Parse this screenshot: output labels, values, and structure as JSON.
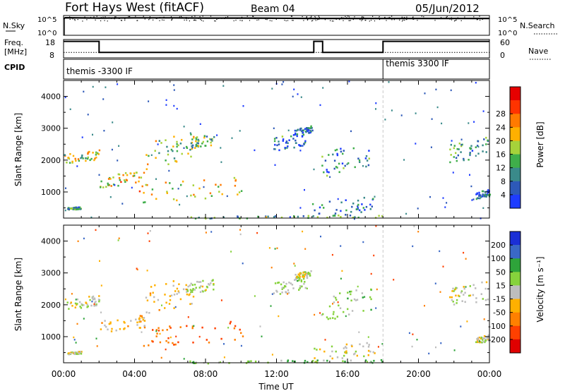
{
  "header": {
    "title": "Fort Hays West (fitACF)",
    "beam": "Beam 04",
    "date": "05/Jun/2012"
  },
  "noise_panel": {
    "left_label": "N.Sky",
    "right_label": "N.Search",
    "ticks_left": [
      "10^5",
      "10^0"
    ],
    "ticks_right": [
      "10^5",
      "10^0"
    ]
  },
  "freq_panel": {
    "left_label_line1": "Freq.",
    "left_label_line2": "[MHz]",
    "left_ticks": [
      "18",
      "8"
    ],
    "right_ticks": [
      "60",
      "0"
    ],
    "right_label": "Nave"
  },
  "cpid_panel": {
    "label": "CPID",
    "segments": [
      {
        "label": "themis -3300 IF",
        "start": 0,
        "end": 18
      },
      {
        "label": "themis 3300 IF",
        "start": 18,
        "end": 24
      }
    ]
  },
  "x_axis": {
    "label": "Time UT",
    "ticks": [
      "00:00",
      "04:00",
      "08:00",
      "12:00",
      "16:00",
      "20:00",
      "00:00"
    ]
  },
  "power_panel": {
    "ylabel": "Slant Range [km]",
    "yticks": [
      "1000",
      "2000",
      "3000",
      "4000"
    ],
    "colorbar_label": "Power [dB]",
    "colorbar_ticks": [
      "4",
      "8",
      "12",
      "16",
      "20",
      "24",
      "28"
    ]
  },
  "velocity_panel": {
    "ylabel": "Slant Range [km]",
    "yticks": [
      "1000",
      "2000",
      "3000",
      "4000"
    ],
    "colorbar_label": "Velocity [m s⁻¹]",
    "colorbar_ticks": [
      "200",
      "100",
      "50",
      "15",
      "-15",
      "-50",
      "-100",
      "-200"
    ]
  },
  "colors": {
    "power_scale": [
      "#1e3cff",
      "#2d59b8",
      "#3a8a8a",
      "#3fae4a",
      "#a6d23a",
      "#ffb000",
      "#ff7a00",
      "#ff3300",
      "#e60000"
    ],
    "velocity_scale": [
      "#1b2fd6",
      "#3a68c6",
      "#2ea43a",
      "#86d23c",
      "#bdbdbd",
      "#ffb000",
      "#ff8000",
      "#ff4000",
      "#e00000"
    ]
  },
  "chart_data": [
    {
      "type": "line",
      "name": "noise",
      "x": [
        0,
        0.1,
        2,
        4,
        6,
        8,
        10,
        12,
        14,
        16,
        18,
        20,
        22,
        24
      ],
      "series": [
        {
          "name": "N.Sky",
          "values": [
            4.6,
            4.9,
            4.8,
            4.85,
            4.85,
            4.8,
            4.8,
            4.75,
            4.7,
            4.7,
            4.7,
            4.7,
            4.7,
            4.7
          ]
        }
      ],
      "ylim": [
        0,
        5.5
      ],
      "xlim": [
        0,
        24
      ]
    },
    {
      "type": "line",
      "name": "frequency",
      "x": [
        0,
        2,
        2,
        14.1,
        14.1,
        14.6,
        14.6,
        18,
        18,
        24
      ],
      "series": [
        {
          "name": "Freq.",
          "values": [
            17,
            17,
            11,
            11,
            17,
            17,
            11,
            11,
            17,
            17
          ]
        }
      ],
      "nave": 11,
      "ylim": [
        8,
        18
      ],
      "xlim": [
        0,
        24
      ]
    },
    {
      "type": "heatmap",
      "name": "power",
      "xlim": [
        0,
        24
      ],
      "ylim": [
        180,
        4500
      ],
      "yunit": "km",
      "zunit": "dB",
      "zlim": [
        0,
        30
      ],
      "regions": [
        {
          "t0": 0.0,
          "t1": 2.0,
          "r0": 1850,
          "r1": 2350,
          "center": 15
        },
        {
          "t0": 0.2,
          "t1": 1.0,
          "r0": 460,
          "r1": 560,
          "center": 10
        },
        {
          "t0": 2.0,
          "t1": 4.6,
          "r0": 1150,
          "r1": 1700,
          "center": 18
        },
        {
          "t0": 4.6,
          "t1": 7.3,
          "r0": 1700,
          "r1": 2950,
          "center": 14
        },
        {
          "t0": 6.8,
          "t1": 8.5,
          "r0": 2350,
          "r1": 2850,
          "center": 12
        },
        {
          "t0": 4.2,
          "t1": 10.2,
          "r0": 650,
          "r1": 1550,
          "center": 17
        },
        {
          "t0": 11.8,
          "t1": 13.6,
          "r0": 2300,
          "r1": 2900,
          "center": 7
        },
        {
          "t0": 13.0,
          "t1": 14.0,
          "r0": 2800,
          "r1": 3100,
          "center": 6
        },
        {
          "t0": 14.5,
          "t1": 17.3,
          "r0": 1500,
          "r1": 2600,
          "center": 8
        },
        {
          "t0": 14.0,
          "t1": 17.5,
          "r0": 200,
          "r1": 900,
          "center": 6
        },
        {
          "t0": 21.7,
          "t1": 23.9,
          "r0": 1900,
          "r1": 2800,
          "center": 10
        },
        {
          "t0": 23.2,
          "t1": 24.0,
          "r0": 800,
          "r1": 1100,
          "center": 5
        },
        {
          "t0": 7.0,
          "t1": 18.0,
          "r0": 180,
          "r1": 300,
          "center": 11
        }
      ]
    },
    {
      "type": "heatmap",
      "name": "velocity",
      "xlim": [
        0,
        24
      ],
      "ylim": [
        180,
        4500
      ],
      "yunit": "km",
      "zunit": "m s-1",
      "zlim": [
        -250,
        250
      ],
      "regions": [
        {
          "t0": 0.0,
          "t1": 2.0,
          "r0": 1850,
          "r1": 2350,
          "center": 0
        },
        {
          "t0": 0.2,
          "t1": 1.0,
          "r0": 460,
          "r1": 560,
          "center": 0
        },
        {
          "t0": 2.0,
          "t1": 4.6,
          "r0": 1150,
          "r1": 1700,
          "center": -30
        },
        {
          "t0": 4.6,
          "t1": 7.3,
          "r0": 1700,
          "r1": 2950,
          "center": -20
        },
        {
          "t0": 6.8,
          "t1": 8.5,
          "r0": 2350,
          "r1": 2850,
          "center": 10
        },
        {
          "t0": 4.2,
          "t1": 10.2,
          "r0": 650,
          "r1": 1550,
          "center": -90
        },
        {
          "t0": 11.8,
          "t1": 13.6,
          "r0": 2300,
          "r1": 2900,
          "center": 20
        },
        {
          "t0": 13.0,
          "t1": 14.0,
          "r0": 2800,
          "r1": 3100,
          "center": 0
        },
        {
          "t0": 14.5,
          "t1": 17.3,
          "r0": 1500,
          "r1": 2600,
          "center": 20
        },
        {
          "t0": 14.0,
          "t1": 17.5,
          "r0": 200,
          "r1": 900,
          "center": 0
        },
        {
          "t0": 21.7,
          "t1": 23.9,
          "r0": 1900,
          "r1": 2800,
          "center": 0
        },
        {
          "t0": 23.2,
          "t1": 24.0,
          "r0": 800,
          "r1": 1100,
          "center": 0
        },
        {
          "t0": 7.0,
          "t1": 18.0,
          "r0": 180,
          "r1": 300,
          "center": 40
        }
      ]
    }
  ]
}
